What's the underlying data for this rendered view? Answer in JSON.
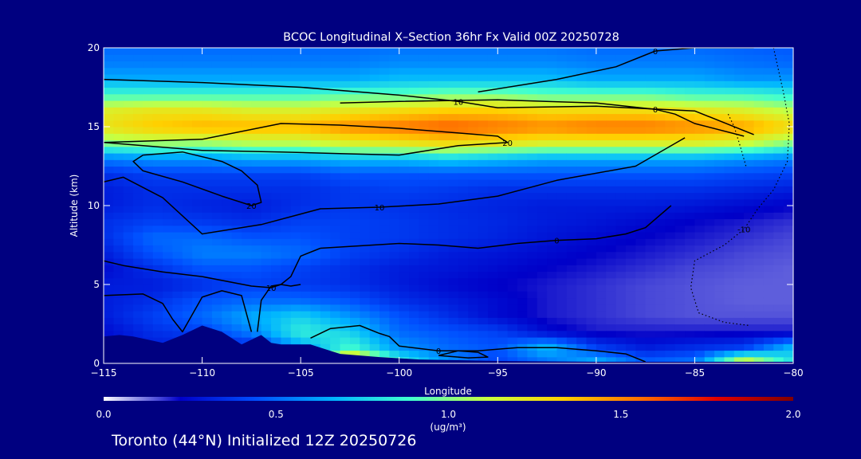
{
  "chart_data": {
    "type": "heatmap",
    "title": "BCOC Longitudinal X–Section 36hr  Fx Valid 00Z 20250728",
    "xlabel": "Longitude",
    "ylabel": "Altitude (km)",
    "xlim": [
      -115,
      -80
    ],
    "ylim": [
      0,
      20
    ],
    "x_ticks": [
      -115,
      -110,
      -105,
      -100,
      -95,
      -90,
      -85,
      -80
    ],
    "x_tick_labels": [
      "−115",
      "−110",
      "−105",
      "−100",
      "−95",
      "−90",
      "−85",
      "−80"
    ],
    "y_ticks": [
      0,
      5,
      10,
      15,
      20
    ],
    "y_tick_labels": [
      "0",
      "5",
      "10",
      "15",
      "20"
    ],
    "colorbar": {
      "min": 0.0,
      "max": 2.0,
      "ticks": [
        0.0,
        0.5,
        1.0,
        1.5,
        2.0
      ],
      "tick_labels": [
        "0.0",
        "0.5",
        "1.0",
        "1.5",
        "2.0"
      ],
      "unit_label": "(ug/m³)",
      "colormap": [
        "#ffffff",
        "#0000c8",
        "#0050ff",
        "#00b4ff",
        "#40ffd0",
        "#c8ff40",
        "#ffd000",
        "#ff7000",
        "#e00000",
        "#800000"
      ]
    },
    "field": {
      "x": [
        -115,
        -112.5,
        -110,
        -107.5,
        -105,
        -102.5,
        -100,
        -97.5,
        -95,
        -92.5,
        -90,
        -87.5,
        -85,
        -82.5,
        -80
      ],
      "y": [
        0,
        1,
        2,
        3,
        4,
        5,
        6,
        7,
        8,
        9,
        10,
        11,
        12,
        13,
        14,
        15,
        16,
        17,
        18,
        19,
        20
      ],
      "z": [
        [
          0.3,
          0.3,
          0.3,
          0.3,
          0.35,
          1.6,
          0.9,
          0.6,
          0.4,
          0.5,
          0.7,
          0.5,
          0.55,
          1.3,
          0.8
        ],
        [
          0.3,
          0.3,
          0.3,
          0.3,
          0.6,
          0.9,
          0.6,
          0.5,
          0.45,
          0.7,
          0.4,
          0.3,
          0.35,
          0.4,
          0.7
        ],
        [
          0.25,
          0.35,
          0.4,
          0.55,
          0.85,
          0.75,
          0.5,
          0.45,
          0.4,
          0.25,
          0.2,
          0.2,
          0.2,
          0.2,
          0.2
        ],
        [
          0.3,
          0.4,
          0.5,
          0.65,
          0.75,
          0.6,
          0.45,
          0.35,
          0.25,
          0.2,
          0.18,
          0.16,
          0.15,
          0.15,
          0.15
        ],
        [
          0.3,
          0.35,
          0.45,
          0.5,
          0.5,
          0.45,
          0.35,
          0.3,
          0.25,
          0.2,
          0.18,
          0.16,
          0.15,
          0.14,
          0.14
        ],
        [
          0.3,
          0.3,
          0.35,
          0.4,
          0.38,
          0.35,
          0.3,
          0.25,
          0.22,
          0.2,
          0.18,
          0.16,
          0.15,
          0.14,
          0.14
        ],
        [
          0.25,
          0.35,
          0.45,
          0.45,
          0.4,
          0.35,
          0.3,
          0.28,
          0.25,
          0.22,
          0.2,
          0.18,
          0.16,
          0.15,
          0.14
        ],
        [
          0.3,
          0.45,
          0.55,
          0.55,
          0.5,
          0.4,
          0.35,
          0.3,
          0.28,
          0.25,
          0.22,
          0.2,
          0.18,
          0.16,
          0.15
        ],
        [
          0.35,
          0.5,
          0.5,
          0.45,
          0.45,
          0.4,
          0.38,
          0.35,
          0.32,
          0.28,
          0.25,
          0.22,
          0.2,
          0.18,
          0.16
        ],
        [
          0.35,
          0.4,
          0.38,
          0.35,
          0.4,
          0.4,
          0.38,
          0.35,
          0.33,
          0.3,
          0.28,
          0.25,
          0.22,
          0.2,
          0.18
        ],
        [
          0.3,
          0.35,
          0.32,
          0.3,
          0.35,
          0.38,
          0.36,
          0.34,
          0.32,
          0.3,
          0.3,
          0.3,
          0.28,
          0.25,
          0.22
        ],
        [
          0.3,
          0.35,
          0.35,
          0.35,
          0.35,
          0.38,
          0.4,
          0.38,
          0.35,
          0.35,
          0.35,
          0.35,
          0.35,
          0.33,
          0.3
        ],
        [
          0.35,
          0.4,
          0.4,
          0.4,
          0.4,
          0.45,
          0.45,
          0.45,
          0.45,
          0.45,
          0.45,
          0.45,
          0.45,
          0.42,
          0.4
        ],
        [
          0.55,
          0.6,
          0.6,
          0.65,
          0.65,
          0.7,
          0.7,
          0.75,
          0.7,
          0.65,
          0.65,
          0.65,
          0.65,
          0.6,
          0.55
        ],
        [
          1.0,
          1.05,
          1.05,
          1.1,
          1.1,
          1.2,
          1.25,
          1.3,
          1.25,
          1.2,
          1.2,
          1.2,
          1.2,
          1.15,
          1.0
        ],
        [
          1.25,
          1.35,
          1.4,
          1.4,
          1.4,
          1.5,
          1.55,
          1.6,
          1.55,
          1.5,
          1.55,
          1.55,
          1.5,
          1.45,
          1.3
        ],
        [
          1.2,
          1.25,
          1.25,
          1.2,
          1.2,
          1.25,
          1.3,
          1.35,
          1.35,
          1.3,
          1.3,
          1.3,
          1.25,
          1.2,
          1.1
        ],
        [
          0.9,
          0.9,
          0.9,
          0.9,
          0.9,
          0.95,
          0.95,
          1.0,
          1.0,
          0.95,
          0.95,
          0.95,
          0.9,
          0.9,
          0.85
        ],
        [
          0.65,
          0.65,
          0.65,
          0.65,
          0.65,
          0.65,
          0.7,
          0.7,
          0.7,
          0.7,
          0.65,
          0.65,
          0.65,
          0.6,
          0.6
        ],
        [
          0.55,
          0.55,
          0.55,
          0.55,
          0.55,
          0.55,
          0.58,
          0.58,
          0.58,
          0.58,
          0.55,
          0.55,
          0.55,
          0.52,
          0.5
        ],
        [
          0.5,
          0.5,
          0.5,
          0.5,
          0.5,
          0.5,
          0.52,
          0.52,
          0.52,
          0.52,
          0.5,
          0.5,
          0.5,
          0.48,
          0.46
        ]
      ]
    },
    "terrain": {
      "x": [
        -115,
        -114.2,
        -113.5,
        -112,
        -111,
        -110,
        -109,
        -108,
        -107.5,
        -107,
        -106.5,
        -106,
        -105.5,
        -104.5,
        -104,
        -103,
        -101,
        -99,
        -97,
        -95,
        -90,
        -85,
        -80
      ],
      "y": [
        1.7,
        1.8,
        1.7,
        1.3,
        1.8,
        2.4,
        2.0,
        1.2,
        1.5,
        1.8,
        1.3,
        1.2,
        1.2,
        1.2,
        1.0,
        0.6,
        0.4,
        0.25,
        0.2,
        0.15,
        0.1,
        0.1,
        0.1
      ]
    },
    "contours": [
      {
        "label": "10",
        "x": [
          -115,
          -110,
          -105,
          -100,
          -97,
          -95,
          -90,
          -85,
          -82
        ],
        "y": [
          18,
          17.8,
          17.5,
          17.0,
          16.6,
          16.2,
          16.3,
          16.0,
          14.5
        ]
      },
      {
        "label": "0",
        "x": [
          -96,
          -92,
          -89,
          -87,
          -85,
          -83,
          -82
        ],
        "y": [
          17.2,
          18.0,
          18.8,
          19.8,
          20.0,
          20.0,
          20.0
        ]
      },
      {
        "label": "0",
        "x": [
          -103,
          -100,
          -95,
          -90,
          -87,
          -86,
          -85,
          -82.5
        ],
        "y": [
          16.5,
          16.6,
          16.7,
          16.5,
          16.1,
          15.8,
          15.2,
          14.4
        ]
      },
      {
        "label": "20",
        "x": [
          -115,
          -110,
          -106,
          -103,
          -100,
          -97,
          -95,
          -94.5,
          -97,
          -100,
          -103,
          -106,
          -110,
          -113,
          -115
        ],
        "y": [
          14.0,
          14.2,
          15.2,
          15.1,
          14.9,
          14.6,
          14.4,
          14.0,
          13.8,
          13.2,
          13.3,
          13.4,
          13.5,
          13.8,
          14.0
        ]
      },
      {
        "label": "20",
        "x": [
          -113,
          -111,
          -109,
          -108,
          -107.2,
          -107,
          -107.5,
          -109,
          -111,
          -113,
          -113.5,
          -113
        ],
        "y": [
          13.2,
          13.4,
          12.8,
          12.2,
          11.3,
          10.2,
          10.0,
          10.6,
          11.5,
          12.2,
          12.8,
          13.2
        ]
      },
      {
        "label": "10",
        "x": [
          -115,
          -114,
          -112,
          -110,
          -107,
          -104,
          -101,
          -98,
          -95,
          -92,
          -88,
          -85.5
        ],
        "y": [
          11.5,
          11.8,
          10.5,
          8.2,
          8.8,
          9.8,
          9.9,
          10.1,
          10.6,
          11.6,
          12.5,
          14.3
        ]
      },
      {
        "label": "10",
        "x": [
          -115,
          -114,
          -112,
          -110,
          -107.5,
          -106.5,
          -106,
          -105.5,
          -105,
          -104
        ],
        "y": [
          6.5,
          6.2,
          5.8,
          5.5,
          4.9,
          4.8,
          5.0,
          5.5,
          6.8,
          7.3
        ]
      },
      {
        "label": "0",
        "x": [
          -104,
          -100,
          -98,
          -96,
          -94,
          -92,
          -90,
          -88.5,
          -87.5,
          -86.2
        ],
        "y": [
          7.3,
          7.6,
          7.5,
          7.3,
          7.6,
          7.8,
          7.9,
          8.2,
          8.6,
          10.0
        ]
      },
      {
        "label": "",
        "x": [
          -115,
          -113,
          -112,
          -111.5,
          -111,
          -110,
          -109,
          -108,
          -107.5
        ],
        "y": [
          4.3,
          4.4,
          3.8,
          2.8,
          2.0,
          4.2,
          4.6,
          4.3,
          2.0
        ]
      },
      {
        "label": "",
        "x": [
          -107.2,
          -107,
          -106.5,
          -106,
          -105.5,
          -105
        ],
        "y": [
          2.0,
          4.0,
          4.9,
          5.0,
          4.9,
          5.0
        ]
      },
      {
        "label": "0",
        "x": [
          -104.5,
          -103.5,
          -102,
          -101,
          -100.5,
          -100,
          -98,
          -96,
          -94,
          -92,
          -90,
          -88.5,
          -87.5
        ],
        "y": [
          1.6,
          2.2,
          2.4,
          1.9,
          1.7,
          1.1,
          0.8,
          0.8,
          1.0,
          1.0,
          0.8,
          0.6,
          0.1
        ]
      },
      {
        "label": "",
        "x": [
          -98,
          -97,
          -96,
          -95.5,
          -96.5,
          -98
        ],
        "y": [
          0.5,
          0.8,
          0.7,
          0.4,
          0.35,
          0.5
        ]
      }
    ],
    "dotted_contours": [
      {
        "label": "-10",
        "x": [
          -81,
          -80.5,
          -80.2,
          -80.3,
          -81,
          -81.8,
          -82.5,
          -83.5,
          -85,
          -85.2,
          -84.8,
          -83.5,
          -82.2
        ],
        "y": [
          20,
          17.2,
          15.2,
          12.8,
          11.0,
          9.8,
          8.5,
          7.5,
          6.5,
          4.8,
          3.2,
          2.6,
          2.4
        ]
      },
      {
        "label": "",
        "x": [
          -83.3,
          -83.0,
          -82.7,
          -82.4
        ],
        "y": [
          15.8,
          15.0,
          13.8,
          12.5
        ]
      }
    ]
  },
  "footer": {
    "text": "Toronto (44°N) Initialized 12Z 20250726"
  }
}
